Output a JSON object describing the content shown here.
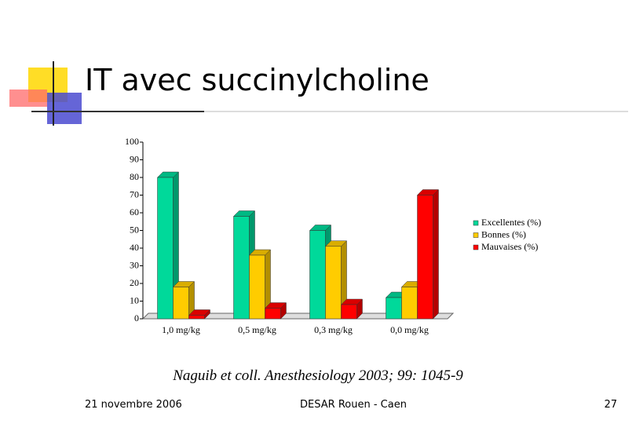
{
  "slide": {
    "title": "IT avec succinylcholine",
    "citation": "Naguib et coll. Anesthesiology 2003; 99: 1045-9",
    "footer_left": "21 novembre 2006",
    "footer_center": "DESAR Rouen - Caen",
    "footer_right": "27"
  },
  "chart_data": {
    "type": "bar",
    "categories": [
      "1,0 mg/kg",
      "0,5 mg/kg",
      "0,3 mg/kg",
      "0,0 mg/kg"
    ],
    "series": [
      {
        "name": "Excellentes (%)",
        "color": "#00d99a",
        "values": [
          80,
          58,
          50,
          12
        ]
      },
      {
        "name": "Bonnes (%)",
        "color": "#ffcc00",
        "values": [
          18,
          36,
          41,
          18
        ]
      },
      {
        "name": "Mauvaises (%)",
        "color": "#ff0000",
        "values": [
          2,
          6,
          8,
          70
        ]
      }
    ],
    "ylim": [
      0,
      100
    ],
    "yticks": [
      0,
      10,
      20,
      30,
      40,
      50,
      60,
      70,
      80,
      90,
      100
    ],
    "legend": "right"
  }
}
